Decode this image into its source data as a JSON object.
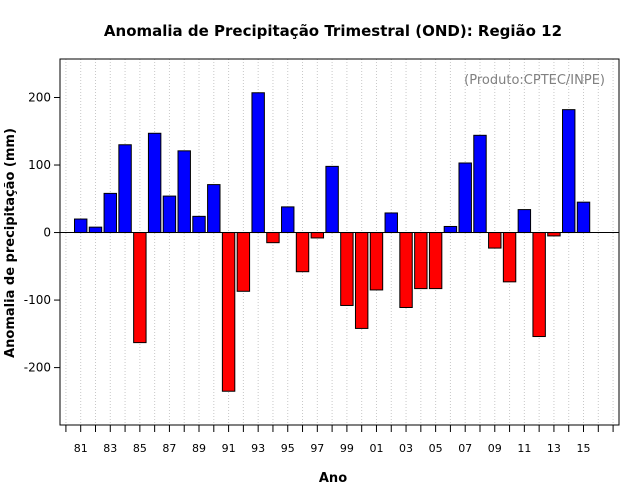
{
  "chart_data": {
    "type": "bar",
    "title": "Anomalia de Precipitação Trimestral (OND): Região 12",
    "xlabel": "Ano",
    "ylabel": "Anomalia de precipitação (mm)",
    "annotation": "(Produto:CPTEC/INPE)",
    "ylim": [
      -285,
      257
    ],
    "xlim": [
      1979.6,
      2017.4
    ],
    "yticks": [
      -200,
      -100,
      0,
      100,
      200
    ],
    "ytick_labels": [
      "-200",
      "-100",
      "0",
      "100",
      "200"
    ],
    "xticks": [
      1981,
      1983,
      1985,
      1987,
      1989,
      1991,
      1993,
      1995,
      1997,
      1999,
      2001,
      2003,
      2005,
      2007,
      2009,
      2011,
      2013,
      2015
    ],
    "xtick_labels": [
      "81",
      "83",
      "85",
      "87",
      "89",
      "91",
      "93",
      "95",
      "97",
      "99",
      "01",
      "03",
      "05",
      "07",
      "09",
      "11",
      "13",
      "15"
    ],
    "grid": true,
    "positive_color": "#0000ff",
    "negative_color": "#ff0000",
    "years": [
      1981,
      1982,
      1983,
      1984,
      1985,
      1986,
      1987,
      1988,
      1989,
      1990,
      1991,
      1992,
      1993,
      1994,
      1995,
      1996,
      1997,
      1998,
      1999,
      2000,
      2001,
      2002,
      2003,
      2004,
      2005,
      2006,
      2007,
      2008,
      2009,
      2010,
      2011,
      2012,
      2013,
      2014,
      2015
    ],
    "values": [
      20,
      8,
      58,
      130,
      -163,
      147,
      54,
      121,
      24,
      71,
      -235,
      -87,
      207,
      -15,
      38,
      -58,
      -8,
      98,
      -108,
      -142,
      -85,
      29,
      -111,
      -83,
      -83,
      9,
      103,
      144,
      -23,
      -73,
      34,
      -154,
      -5,
      182,
      45
    ]
  }
}
